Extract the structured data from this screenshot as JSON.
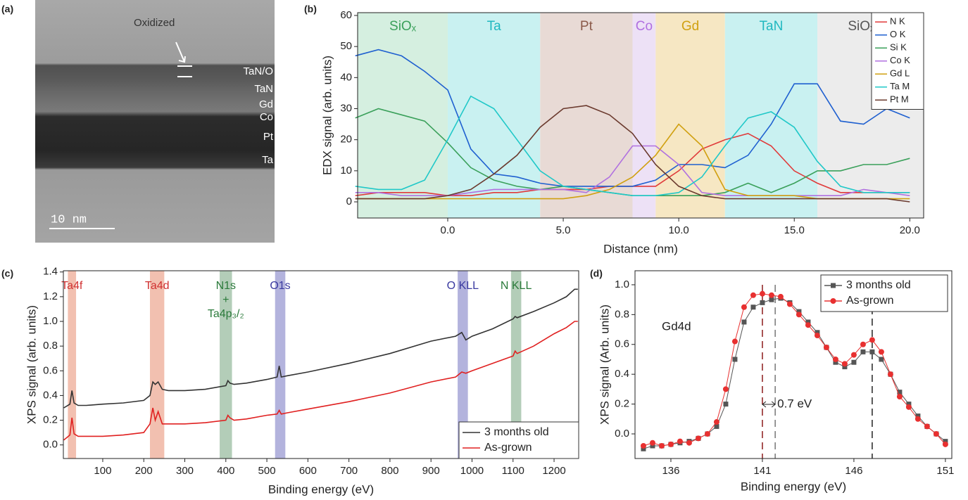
{
  "image_panel": {
    "panel_label": "(a)",
    "annotation": "Oxidized",
    "layers": [
      "TaN/O",
      "TaN",
      "Gd",
      "Co",
      "Pt",
      "Ta"
    ],
    "scale_bar": "10 nm"
  },
  "chart_data": [
    {
      "type": "line",
      "panel_label": "(b)",
      "x_label": "Distance (nm)",
      "y_label": "EDX signal (arb. units)",
      "xlim": [
        -3.9,
        20.6
      ],
      "ylim": [
        -5.2,
        60.9
      ],
      "xticks": [
        {
          "value": 0,
          "label": "0.0"
        },
        {
          "value": 5,
          "label": "5.0"
        },
        {
          "value": 10,
          "label": "10.0"
        },
        {
          "value": 15,
          "label": "15.0"
        },
        {
          "value": 20,
          "label": "20.0"
        }
      ],
      "yticks": [
        0,
        10,
        20,
        30,
        40,
        50,
        60
      ],
      "legend": "upper right",
      "bands": [
        {
          "label": "SiOₓ",
          "range": [
            -3.9,
            0
          ],
          "color": "#d5efe0",
          "label_color": "#3aa05a"
        },
        {
          "label": "Ta",
          "range": [
            0,
            4
          ],
          "color": "#c9f1f1",
          "label_color": "#20b8c0"
        },
        {
          "label": "Pt",
          "range": [
            4,
            8
          ],
          "color": "#e8dad5",
          "label_color": "#8a5a4a"
        },
        {
          "label": "Co",
          "range": [
            8,
            9
          ],
          "color": "#ede1f6",
          "label_color": "#b070e0"
        },
        {
          "label": "Gd",
          "range": [
            9,
            12
          ],
          "color": "#f6e7c3",
          "label_color": "#d0a010"
        },
        {
          "label": "TaN",
          "range": [
            12,
            16
          ],
          "color": "#c9f1f1",
          "label_color": "#20b8c0"
        },
        {
          "label": "SiOₓ(C)",
          "range": [
            16,
            20.6
          ],
          "color": "#ececec",
          "label_color": "#555555"
        }
      ],
      "x": [
        -4,
        -3,
        -2,
        -1,
        0,
        1,
        2,
        3,
        4,
        5,
        6,
        7,
        8,
        9,
        10,
        11,
        12,
        13,
        14,
        15,
        16,
        17,
        18,
        19,
        20
      ],
      "series": [
        {
          "name": "N K",
          "color": "#e03a3a",
          "values": [
            2,
            3,
            3,
            3,
            2,
            2,
            3,
            3,
            4,
            4,
            4,
            5,
            5,
            5,
            10,
            17,
            20,
            22,
            18,
            10,
            6,
            3,
            3,
            3,
            3
          ]
        },
        {
          "name": "O K",
          "color": "#1f60d0",
          "values": [
            47,
            49,
            47,
            42,
            36,
            17,
            9,
            8,
            6,
            5,
            5,
            5,
            5,
            7,
            12,
            12,
            11,
            15,
            25,
            38,
            38,
            26,
            25,
            30,
            27
          ]
        },
        {
          "name": "Si K",
          "color": "#3aa05a",
          "values": [
            27,
            30,
            28,
            26,
            19,
            11,
            7,
            5,
            4,
            5,
            4,
            3,
            2,
            2,
            2,
            2,
            3,
            6,
            3,
            6,
            10,
            10,
            12,
            12,
            14
          ]
        },
        {
          "name": "Co K",
          "color": "#b070e0",
          "values": [
            3,
            3,
            2,
            2,
            2,
            3,
            4,
            4,
            4,
            4,
            3,
            8,
            18,
            18,
            12,
            3,
            2,
            2,
            2,
            2,
            2,
            2,
            4,
            3,
            2
          ]
        },
        {
          "name": "Gd L",
          "color": "#d0a010",
          "values": [
            1,
            1,
            1,
            1,
            1,
            1,
            1,
            1,
            1,
            1,
            2,
            4,
            8,
            15,
            25,
            18,
            4,
            2,
            2,
            2,
            1,
            1,
            1,
            1,
            1
          ]
        },
        {
          "name": "Ta M",
          "color": "#20c8c8",
          "values": [
            5,
            4,
            4,
            7,
            20,
            34,
            30,
            20,
            10,
            5,
            4,
            3,
            2,
            2,
            3,
            8,
            18,
            27,
            29,
            24,
            13,
            5,
            3,
            3,
            3
          ]
        },
        {
          "name": "Pt M",
          "color": "#6b3a2e",
          "values": [
            1,
            1,
            1,
            1,
            2,
            4,
            9,
            15,
            24,
            30,
            31,
            28,
            22,
            12,
            5,
            2,
            1,
            1,
            1,
            1,
            1,
            1,
            1,
            1,
            0
          ]
        }
      ]
    },
    {
      "type": "line",
      "panel_label": "(c)",
      "x_label": "Binding energy (eV)",
      "y_label": "XPS signal (arb. units)",
      "xlim": [
        4,
        1260
      ],
      "ylim": [
        -0.11,
        1.41
      ],
      "xticks": [
        100,
        200,
        300,
        400,
        500,
        600,
        700,
        800,
        900,
        1000,
        1100,
        1200
      ],
      "yticks": [
        {
          "value": 0,
          "label": "0.0"
        },
        0.2,
        0.4,
        0.6,
        0.8,
        {
          "value": 1,
          "label": "1.0"
        },
        1.2,
        1.4
      ],
      "legend": "lower right",
      "bands": [
        {
          "label": "Ta4f",
          "range": [
            15,
            35
          ],
          "color": "#f2c0b0",
          "label_color": "#d03030"
        },
        {
          "label": "Ta4d",
          "range": [
            215,
            250
          ],
          "color": "#f2c0b0",
          "label_color": "#d03030"
        },
        {
          "label": [
            "N1s",
            "+",
            "Ta4p₃/₂"
          ],
          "range": [
            385,
            415
          ],
          "color": "#b3cdb8",
          "label_color": "#2a7a3a"
        },
        {
          "label": "O1s",
          "range": [
            520,
            545
          ],
          "color": "#b3b3dd",
          "label_color": "#3a3aa0"
        },
        {
          "label": "O KLL",
          "range": [
            965,
            990
          ],
          "color": "#b3b3dd",
          "label_color": "#3a3aa0"
        },
        {
          "label": "N KLL",
          "range": [
            1095,
            1120
          ],
          "color": "#b3cdb8",
          "label_color": "#2a7a3a"
        }
      ],
      "x": [
        5,
        20,
        25,
        30,
        40,
        60,
        100,
        150,
        200,
        215,
        222,
        228,
        235,
        245,
        260,
        300,
        350,
        400,
        405,
        410,
        420,
        450,
        500,
        525,
        530,
        535,
        550,
        600,
        700,
        800,
        900,
        960,
        975,
        985,
        1000,
        1050,
        1100,
        1105,
        1110,
        1150,
        1200,
        1230,
        1250,
        1258
      ],
      "series": [
        {
          "name": "3 months old",
          "color": "#333333",
          "values": [
            0.3,
            0.33,
            0.44,
            0.34,
            0.32,
            0.32,
            0.33,
            0.34,
            0.36,
            0.4,
            0.51,
            0.49,
            0.51,
            0.45,
            0.44,
            0.44,
            0.45,
            0.48,
            0.52,
            0.5,
            0.49,
            0.5,
            0.53,
            0.55,
            0.64,
            0.55,
            0.56,
            0.59,
            0.66,
            0.74,
            0.84,
            0.88,
            0.91,
            0.85,
            0.88,
            0.94,
            1.02,
            1.04,
            1.03,
            1.08,
            1.15,
            1.2,
            1.26,
            1.26
          ]
        },
        {
          "name": "As-grown",
          "color": "#e02020",
          "values": [
            0.04,
            0.08,
            0.22,
            0.09,
            0.07,
            0.07,
            0.07,
            0.08,
            0.1,
            0.17,
            0.3,
            0.2,
            0.27,
            0.17,
            0.17,
            0.17,
            0.18,
            0.2,
            0.24,
            0.22,
            0.2,
            0.21,
            0.24,
            0.25,
            0.28,
            0.25,
            0.26,
            0.29,
            0.35,
            0.42,
            0.51,
            0.55,
            0.59,
            0.58,
            0.6,
            0.66,
            0.72,
            0.76,
            0.74,
            0.8,
            0.9,
            0.95,
            1.0,
            1.0
          ]
        }
      ]
    },
    {
      "type": "scatter-line",
      "panel_label": "(d)",
      "x_label": "Binding energy (eV)",
      "y_label": "XPS signal (Arb. units)",
      "xlim": [
        134.04,
        151.35
      ],
      "ylim": [
        -0.165,
        1.094
      ],
      "xticks": [
        136,
        141,
        146,
        151
      ],
      "yticks": [
        {
          "value": 0,
          "label": "0.0"
        },
        0.2,
        0.4,
        0.6,
        0.8,
        {
          "value": 1,
          "label": "1.0"
        }
      ],
      "legend": "upper right",
      "annotations": [
        "Gd4d",
        "0.7 eV"
      ],
      "vlines": [
        {
          "value": 141.0,
          "color": "#8b1a1a"
        },
        {
          "value": 141.7,
          "color": "#777777"
        },
        {
          "value": 147.0,
          "color": "#222222"
        }
      ],
      "x": [
        134.5,
        135,
        135.5,
        136,
        136.5,
        137,
        137.5,
        138,
        138.5,
        139,
        139.5,
        140,
        140.5,
        141,
        141.5,
        142,
        142.5,
        143,
        143.5,
        144,
        144.5,
        145,
        145.5,
        146,
        146.5,
        147,
        147.5,
        148,
        148.5,
        149,
        149.5,
        150,
        150.5,
        151
      ],
      "series": [
        {
          "name": "3 months old",
          "color": "#555555",
          "marker": "square",
          "values": [
            -0.1,
            -0.08,
            -0.08,
            -0.07,
            -0.06,
            -0.05,
            -0.03,
            0.0,
            0.05,
            0.2,
            0.5,
            0.75,
            0.85,
            0.88,
            0.9,
            0.91,
            0.88,
            0.82,
            0.75,
            0.68,
            0.58,
            0.48,
            0.45,
            0.48,
            0.55,
            0.55,
            0.5,
            0.4,
            0.28,
            0.2,
            0.12,
            0.05,
            0.0,
            -0.05
          ]
        },
        {
          "name": "As-grown",
          "color": "#e83030",
          "marker": "circle",
          "values": [
            -0.08,
            -0.06,
            -0.08,
            -0.07,
            -0.05,
            -0.06,
            -0.03,
            0.0,
            0.08,
            0.3,
            0.62,
            0.85,
            0.93,
            0.94,
            0.93,
            0.92,
            0.87,
            0.8,
            0.73,
            0.66,
            0.58,
            0.5,
            0.47,
            0.53,
            0.6,
            0.63,
            0.55,
            0.4,
            0.25,
            0.18,
            0.1,
            0.05,
            0.0,
            -0.07
          ]
        }
      ]
    }
  ]
}
